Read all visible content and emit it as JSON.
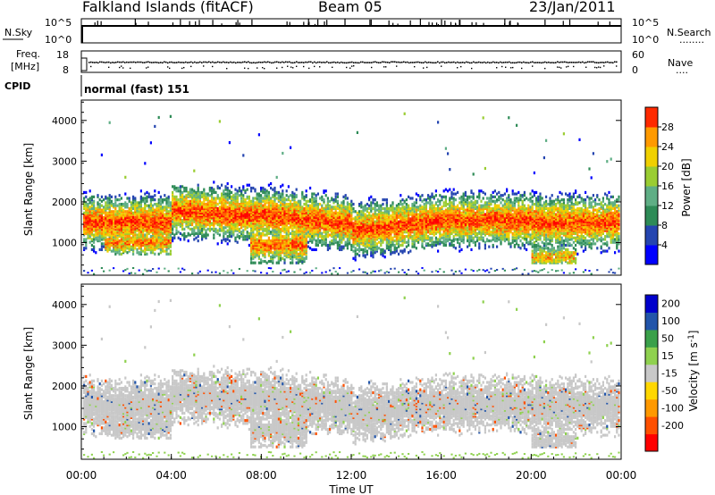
{
  "header": {
    "station": "Falkland Islands (fitACF)",
    "beam": "Beam 05",
    "date": "23/Jan/2011"
  },
  "panels": {
    "nsky": {
      "label": "N.Sky",
      "ticks_left": [
        "10^5",
        "10^0"
      ],
      "ticks_right": [
        "10^5",
        "10^0"
      ],
      "right_label": "N.Search",
      "right_dots": "........"
    },
    "freq": {
      "label_top": "Freq.",
      "label_bottom": "[MHz]",
      "ticks_left": [
        "18",
        "8"
      ],
      "ticks_right": [
        "60",
        "0"
      ],
      "right_label": "Nave",
      "right_dots": "...."
    },
    "cpid": {
      "label": "CPID",
      "text": "normal (fast) 151"
    }
  },
  "colors": {
    "power_scale": [
      "#0000ff",
      "#2a4fb0",
      "#2e8b57",
      "#5fb38a",
      "#9acd32",
      "#e8e000",
      "#ffa500",
      "#ff6a00",
      "#ff3000",
      "#ff0000"
    ],
    "velocity_scale": [
      "#0000cc",
      "#2255aa",
      "#1e7b3a",
      "#3aa04a",
      "#8fd14f",
      "#c8c8c8",
      "#c8c8c8",
      "#ffd700",
      "#ff9900",
      "#ff5500",
      "#ff0000"
    ]
  },
  "chart_data": [
    {
      "type": "heatmap",
      "ylabel": "Slant Range [km]",
      "yticks": [
        "1000",
        "2000",
        "3000",
        "4000"
      ],
      "ylim": [
        200,
        4500
      ],
      "colorbar_label": "Power [dB]",
      "colorbar_ticks": [
        "4",
        "8",
        "12",
        "16",
        "20",
        "24",
        "28"
      ],
      "clim": [
        0,
        32
      ]
    },
    {
      "type": "heatmap",
      "ylabel": "Slant Range [km]",
      "yticks": [
        "1000",
        "2000",
        "3000",
        "4000"
      ],
      "ylim": [
        200,
        4500
      ],
      "colorbar_label": "Velocity [m s^-1]",
      "colorbar_ticks": [
        "200",
        "100",
        "50",
        "15",
        "-15",
        "-50",
        "-100",
        "-200"
      ]
    },
    {
      "type": "time_axis",
      "xlabel": "Time UT",
      "xticks": [
        "00:00",
        "04:00",
        "08:00",
        "12:00",
        "16:00",
        "20:00",
        "00:00"
      ],
      "xlim_hours": [
        0,
        24
      ]
    }
  ]
}
